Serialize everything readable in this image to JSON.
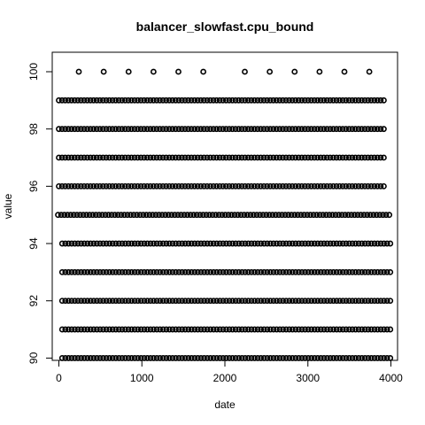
{
  "chart_data": {
    "type": "scatter",
    "title": "balancer_slowfast.cpu_bound",
    "xlabel": "date",
    "ylabel": "value",
    "xlim": [
      -80,
      4080
    ],
    "ylim": [
      89.92,
      100.68
    ],
    "xticks": [
      0,
      1000,
      2000,
      3000,
      4000
    ],
    "yticks": [
      90,
      92,
      94,
      96,
      98,
      100
    ],
    "grid": false,
    "legend": "none",
    "marker": "open-circle",
    "series": [
      {
        "level": 100,
        "x": [
          240,
          540,
          840,
          1140,
          1440,
          1740,
          2240,
          2540,
          2840,
          3140,
          3440,
          3740
        ]
      },
      {
        "level": 99,
        "xrange": [
          0,
          3950
        ],
        "spacing": 38
      },
      {
        "level": 98,
        "xrange": [
          0,
          3950
        ],
        "spacing": 38
      },
      {
        "level": 97,
        "xrange": [
          0,
          3950
        ],
        "spacing": 38
      },
      {
        "level": 96,
        "xrange": [
          0,
          3950
        ],
        "spacing": 38
      },
      {
        "level": 95,
        "xrange": [
          -10,
          4000
        ],
        "spacing": 38
      },
      {
        "level": 94,
        "xrange": [
          40,
          4000
        ],
        "spacing": 38
      },
      {
        "level": 93,
        "xrange": [
          40,
          4000
        ],
        "spacing": 38
      },
      {
        "level": 92,
        "xrange": [
          40,
          4000
        ],
        "spacing": 38
      },
      {
        "level": 91,
        "xrange": [
          40,
          4000
        ],
        "spacing": 38
      },
      {
        "level": 90,
        "xrange": [
          40,
          4000
        ],
        "spacing": 38
      }
    ]
  }
}
